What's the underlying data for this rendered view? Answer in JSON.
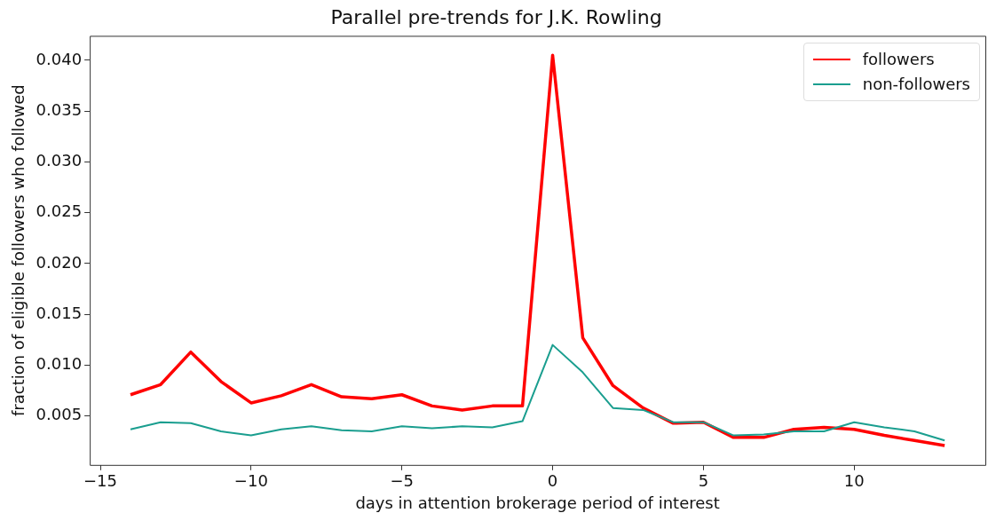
{
  "chart_data": {
    "type": "line",
    "title": "Parallel pre-trends for J.K. Rowling",
    "xlabel": "days in attention brokerage period of interest",
    "ylabel": "fraction of eligible followers who followed",
    "x": [
      -14,
      -13,
      -12,
      -11,
      -10,
      -9,
      -8,
      -7,
      -6,
      -5,
      -4,
      -3,
      -2,
      -1,
      0,
      1,
      2,
      3,
      4,
      5,
      6,
      7,
      8,
      9,
      10,
      11,
      12,
      13
    ],
    "series": [
      {
        "name": "followers",
        "color": "#ff0000",
        "values": [
          0.0071,
          0.0081,
          0.0113,
          0.0084,
          0.0063,
          0.007,
          0.0081,
          0.0069,
          0.0067,
          0.0071,
          0.006,
          0.0056,
          0.006,
          0.006,
          0.0405,
          0.0127,
          0.008,
          0.0058,
          0.0043,
          0.0044,
          0.0029,
          0.0029,
          0.0037,
          0.0039,
          0.0037,
          0.0031,
          0.0026,
          0.0021
        ]
      },
      {
        "name": "non-followers",
        "color": "#1a9e8f",
        "values": [
          0.0037,
          0.0044,
          0.0043,
          0.0035,
          0.0031,
          0.0037,
          0.004,
          0.0036,
          0.0035,
          0.004,
          0.0038,
          0.004,
          0.0039,
          0.0045,
          0.012,
          0.0093,
          0.0058,
          0.0056,
          0.0044,
          0.0044,
          0.0031,
          0.0032,
          0.0035,
          0.0035,
          0.0044,
          0.0039,
          0.0035,
          0.0026
        ]
      }
    ],
    "xlim": [
      -15.35,
      14.35
    ],
    "xticks": [
      {
        "value": -15,
        "label": "−15"
      },
      {
        "value": -10,
        "label": "−10"
      },
      {
        "value": -5,
        "label": "−5"
      },
      0,
      5,
      10
    ],
    "ylim": [
      0.0002,
      0.0424
    ],
    "yticks": [
      0.005,
      {
        "value": 0.01,
        "label": "0.010"
      },
      0.015,
      {
        "value": 0.02,
        "label": "0.020"
      },
      0.025,
      {
        "value": 0.03,
        "label": "0.030"
      },
      0.035,
      {
        "value": 0.04,
        "label": "0.040"
      }
    ],
    "grid": false,
    "legend": "top right",
    "marker": "none",
    "line_style": "solid"
  }
}
